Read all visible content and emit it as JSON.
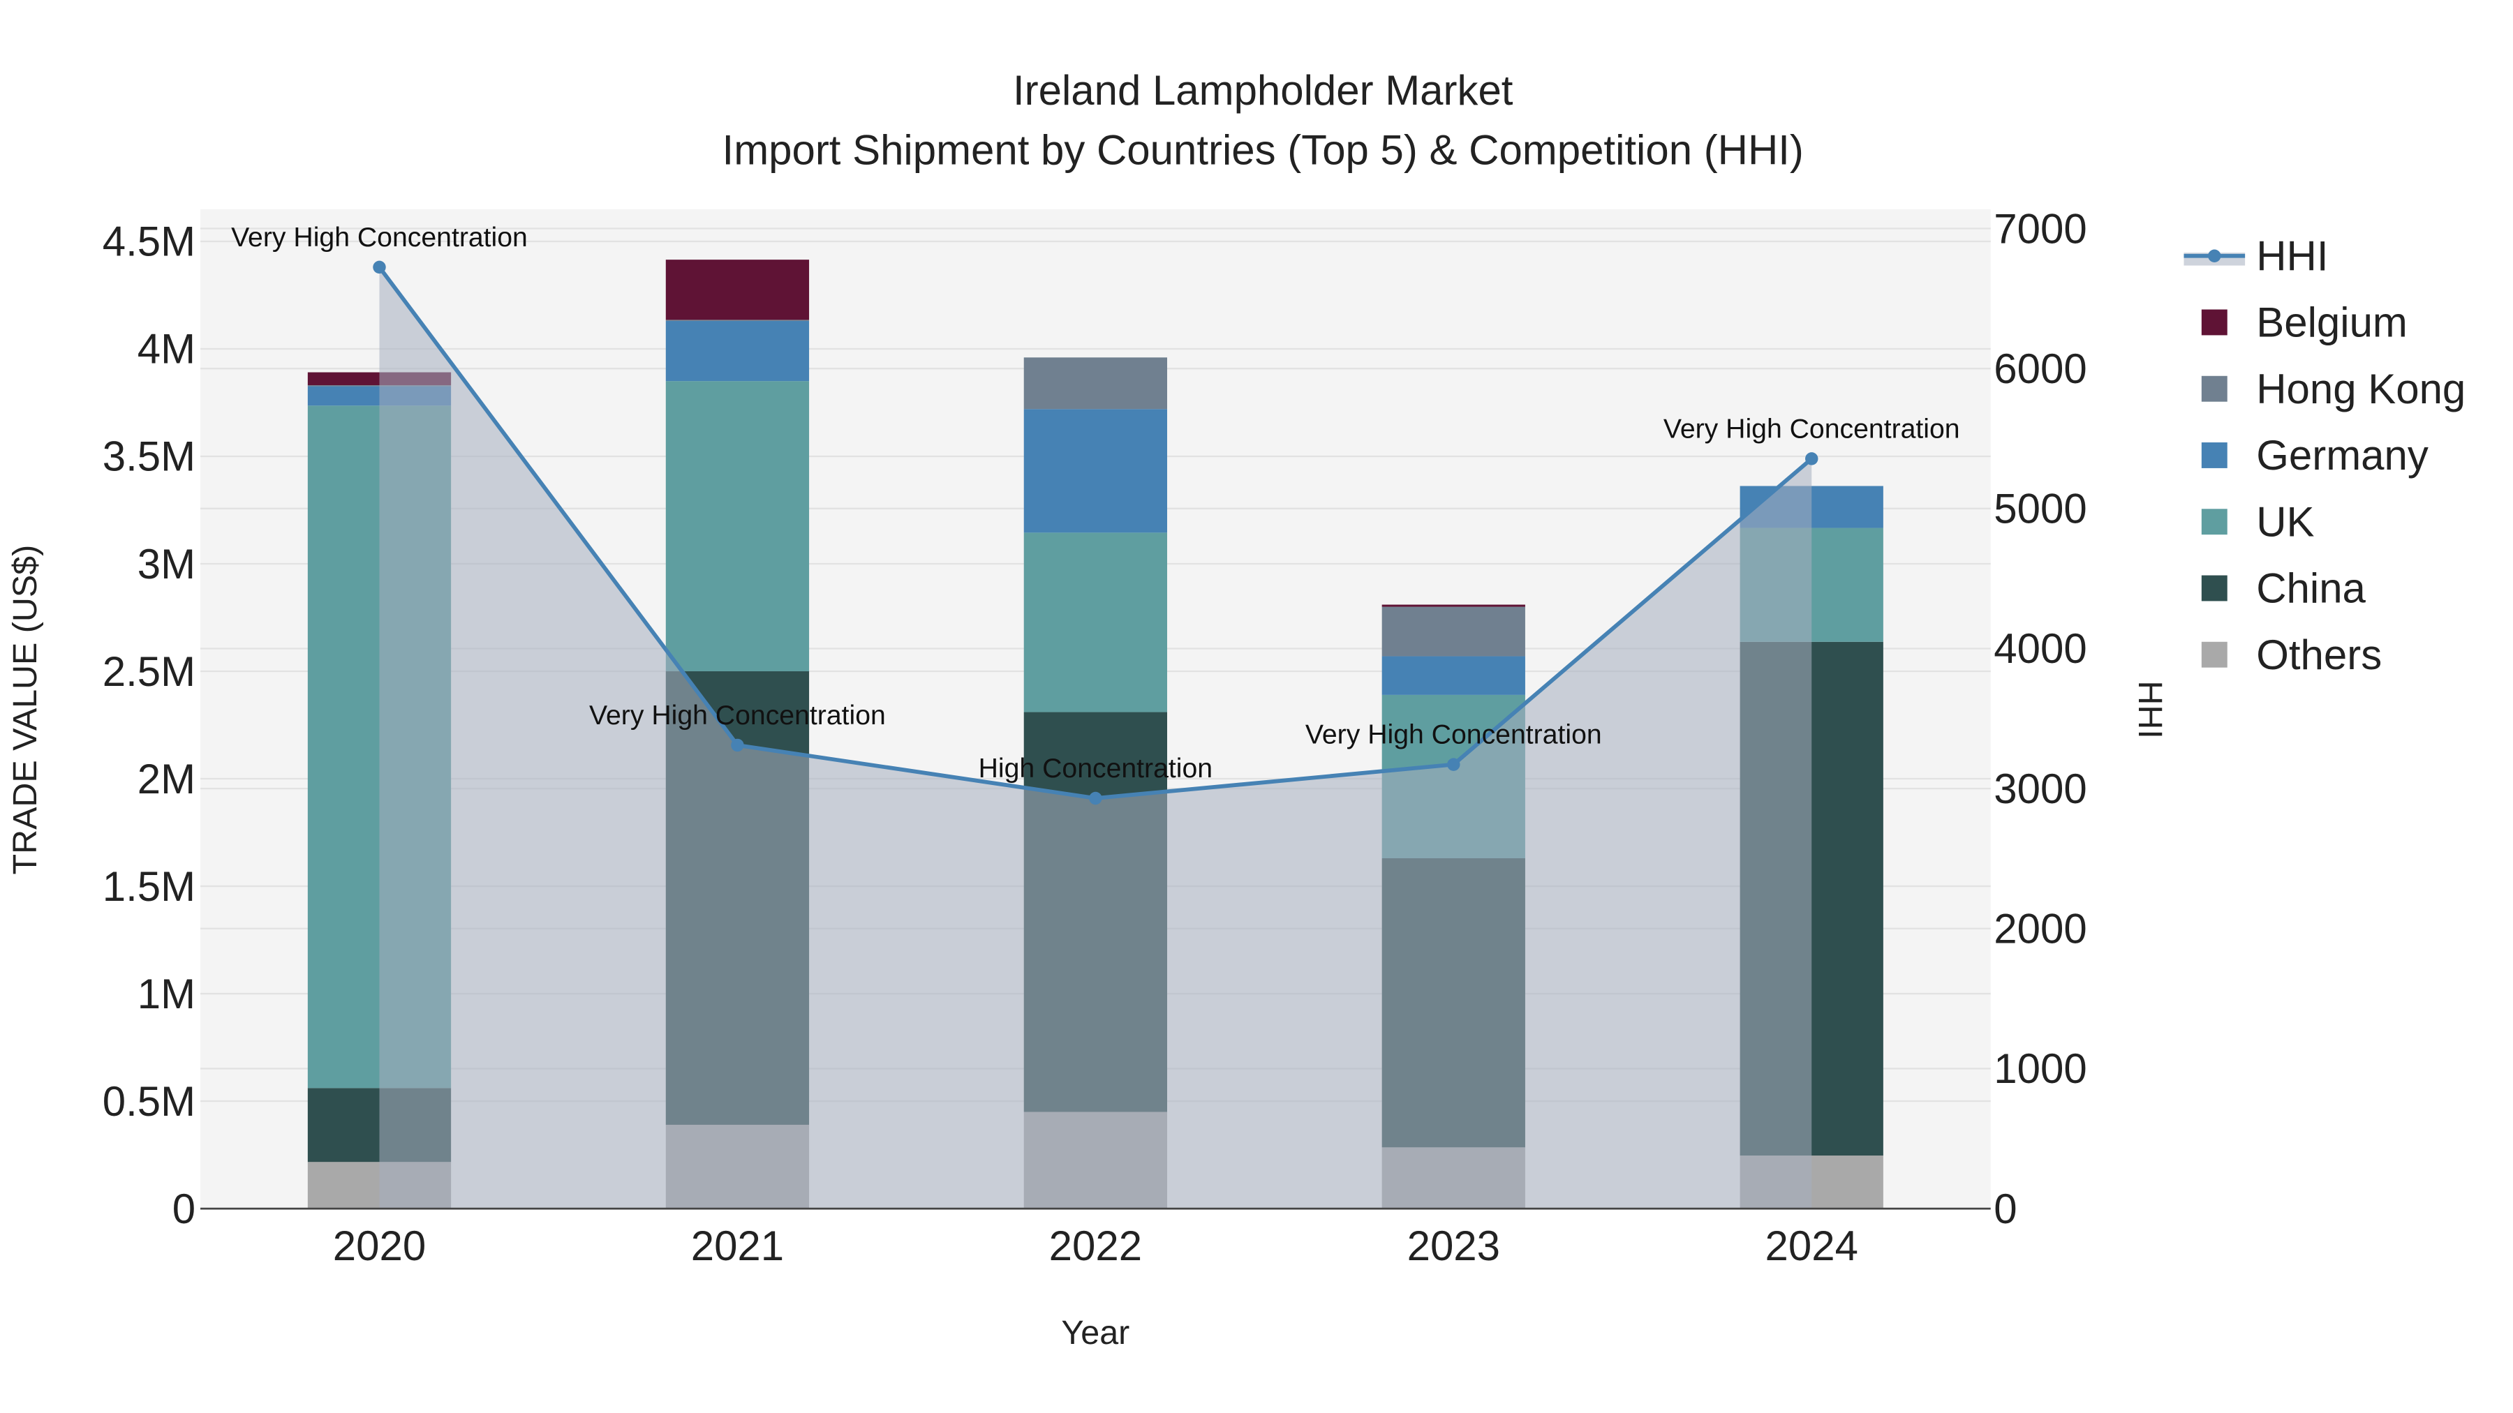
{
  "chart_data": {
    "type": "bar",
    "title": "Ireland Lampholder Market",
    "subtitle": "Import Shipment by Countries (Top 5) & Competition (HHI)",
    "xlabel": "Year",
    "ylabel": "TRADE VALUE (US$)",
    "y2label": "HHI",
    "categories": [
      "2020",
      "2021",
      "2022",
      "2023",
      "2024"
    ],
    "ylim": [
      0,
      4650000
    ],
    "y2lim": [
      0,
      7150
    ],
    "yticks": [
      0,
      500000,
      1000000,
      1500000,
      2000000,
      2500000,
      3000000,
      3500000,
      4000000,
      4500000
    ],
    "ytick_labels": [
      "0",
      "0.5M",
      "1M",
      "1.5M",
      "2M",
      "2.5M",
      "3M",
      "3.5M",
      "4M",
      "4.5M"
    ],
    "y2ticks": [
      0,
      1000,
      2000,
      3000,
      4000,
      5000,
      6000,
      7000
    ],
    "y2tick_labels": [
      "0",
      "1000",
      "2000",
      "3000",
      "4000",
      "5000",
      "6000",
      "7000"
    ],
    "grid": true,
    "legend_position": "right",
    "series": [
      {
        "name": "Others",
        "color": "#a9a9a9",
        "values": [
          217000,
          390000,
          450000,
          285000,
          247000
        ]
      },
      {
        "name": "China",
        "color": "#2f4f4f",
        "values": [
          344000,
          2110000,
          1860000,
          1345000,
          2390000
        ]
      },
      {
        "name": "UK",
        "color": "#5f9ea0",
        "values": [
          3175000,
          1350000,
          835000,
          760000,
          530000
        ]
      },
      {
        "name": "Germany",
        "color": "#4682b4",
        "values": [
          90000,
          280000,
          575000,
          180000,
          195000
        ]
      },
      {
        "name": "Hong Kong",
        "color": "#708090",
        "values": [
          5000,
          5000,
          240000,
          230000,
          0
        ]
      },
      {
        "name": "Belgium",
        "color": "#5f1335",
        "values": [
          60000,
          280000,
          0,
          10000,
          0
        ]
      }
    ],
    "hhi": {
      "name": "HHI",
      "color": "#4682b4",
      "values": [
        6724,
        3310,
        2931,
        3172,
        5356
      ],
      "annotations": [
        "Very High Concentration",
        "Very High Concentration",
        "High Concentration",
        "Very High Concentration",
        "Very High Concentration"
      ]
    },
    "legend": [
      "HHI",
      "Belgium",
      "Hong Kong",
      "Germany",
      "UK",
      "China",
      "Others"
    ]
  }
}
